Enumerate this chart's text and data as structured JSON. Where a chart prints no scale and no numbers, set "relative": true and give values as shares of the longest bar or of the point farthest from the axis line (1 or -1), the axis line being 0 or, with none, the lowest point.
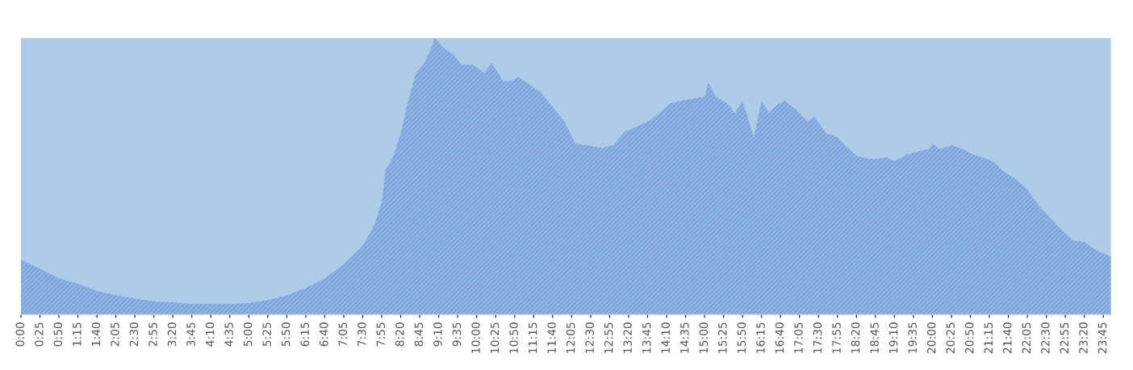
{
  "chart_data": {
    "type": "area",
    "relative": true,
    "tick_labels": "x",
    "grid": false,
    "legend": false,
    "x": [
      0,
      0.4167,
      0.8333,
      1.25,
      1.6667,
      2.0833,
      2.5,
      2.9167,
      3.3333,
      3.75,
      4.1667,
      4.5833,
      5,
      5.4167,
      5.8333,
      6.25,
      6.6667,
      7.0833,
      7.5,
      7.75,
      7.9167,
      8,
      8.1667,
      8.3333,
      8.5,
      8.6667,
      8.8333,
      9,
      9.0833,
      9.25,
      9.5,
      9.6667,
      9.9167,
      10.1667,
      10.3333,
      10.5833,
      10.75,
      10.9167,
      11.1667,
      11.4167,
      11.6667,
      11.9167,
      12.1667,
      12.4167,
      12.75,
      13,
      13.25,
      13.5833,
      13.8333,
      14,
      14.25,
      14.5,
      14.75,
      15,
      15.0833,
      15.25,
      15.5,
      15.6667,
      15.8333,
      16.0833,
      16.25,
      16.4167,
      16.5833,
      16.75,
      17,
      17.25,
      17.4167,
      17.6667,
      17.9167,
      18.0833,
      18.3333,
      18.5833,
      18.8333,
      19,
      19.1667,
      19.4167,
      19.6667,
      19.9167,
      20,
      20.1667,
      20.4167,
      20.6667,
      20.8333,
      21.0833,
      21.3333,
      21.5833,
      21.8333,
      22.0833,
      22.3333,
      22.5833,
      22.8333,
      23.0833,
      23.3333,
      23.5833,
      23.9167
    ],
    "series": [
      {
        "color": "#8fb4e3",
        "values": [
          0.198,
          0.166,
          0.131,
          0.111,
          0.085,
          0.07,
          0.058,
          0.047,
          0.044,
          0.038,
          0.038,
          0.038,
          0.041,
          0.052,
          0.07,
          0.096,
          0.131,
          0.181,
          0.248,
          0.321,
          0.408,
          0.525,
          0.569,
          0.656,
          0.773,
          0.875,
          0.904,
          0.962,
          1.0,
          0.968,
          0.939,
          0.904,
          0.904,
          0.875,
          0.91,
          0.845,
          0.845,
          0.86,
          0.831,
          0.802,
          0.752,
          0.7,
          0.618,
          0.612,
          0.603,
          0.612,
          0.662,
          0.685,
          0.706,
          0.729,
          0.764,
          0.773,
          0.781,
          0.787,
          0.84,
          0.787,
          0.764,
          0.729,
          0.773,
          0.641,
          0.773,
          0.729,
          0.758,
          0.773,
          0.743,
          0.7,
          0.714,
          0.656,
          0.641,
          0.612,
          0.574,
          0.563,
          0.563,
          0.569,
          0.554,
          0.577,
          0.589,
          0.598,
          0.618,
          0.598,
          0.612,
          0.598,
          0.583,
          0.569,
          0.554,
          0.516,
          0.49,
          0.452,
          0.394,
          0.35,
          0.306,
          0.268,
          0.262,
          0.233,
          0.21
        ]
      }
    ],
    "xlim": [
      0,
      23.9167
    ],
    "xticks": [
      {
        "value": 0,
        "label": "0:00"
      },
      {
        "value": 0.4167,
        "label": "0:25"
      },
      {
        "value": 0.8333,
        "label": "0:50"
      },
      {
        "value": 1.25,
        "label": "1:15"
      },
      {
        "value": 1.6667,
        "label": "1:40"
      },
      {
        "value": 2.0833,
        "label": "2:05"
      },
      {
        "value": 2.5,
        "label": "2:30"
      },
      {
        "value": 2.9167,
        "label": "2:55"
      },
      {
        "value": 3.3333,
        "label": "3:20"
      },
      {
        "value": 3.75,
        "label": "3:45"
      },
      {
        "value": 4.1667,
        "label": "4:10"
      },
      {
        "value": 4.5833,
        "label": "4:35"
      },
      {
        "value": 5,
        "label": "5:00"
      },
      {
        "value": 5.4167,
        "label": "5:25"
      },
      {
        "value": 5.8333,
        "label": "5:50"
      },
      {
        "value": 6.25,
        "label": "6:15"
      },
      {
        "value": 6.6667,
        "label": "6:40"
      },
      {
        "value": 7.0833,
        "label": "7:05"
      },
      {
        "value": 7.5,
        "label": "7:30"
      },
      {
        "value": 7.9167,
        "label": "7:55"
      },
      {
        "value": 8.3333,
        "label": "8:20"
      },
      {
        "value": 8.75,
        "label": "8:45"
      },
      {
        "value": 9.1667,
        "label": "9:10"
      },
      {
        "value": 9.5833,
        "label": "9:35"
      },
      {
        "value": 10,
        "label": "10:00"
      },
      {
        "value": 10.4167,
        "label": "10:25"
      },
      {
        "value": 10.8333,
        "label": "10:50"
      },
      {
        "value": 11.25,
        "label": "11:15"
      },
      {
        "value": 11.6667,
        "label": "11:40"
      },
      {
        "value": 12.0833,
        "label": "12:05"
      },
      {
        "value": 12.5,
        "label": "12:30"
      },
      {
        "value": 12.9167,
        "label": "12:55"
      },
      {
        "value": 13.3333,
        "label": "13:20"
      },
      {
        "value": 13.75,
        "label": "13:45"
      },
      {
        "value": 14.1667,
        "label": "14:10"
      },
      {
        "value": 14.5833,
        "label": "14:35"
      },
      {
        "value": 15,
        "label": "15:00"
      },
      {
        "value": 15.4167,
        "label": "15:25"
      },
      {
        "value": 15.8333,
        "label": "15:50"
      },
      {
        "value": 16.25,
        "label": "16:15"
      },
      {
        "value": 16.6667,
        "label": "16:40"
      },
      {
        "value": 17.0833,
        "label": "17:05"
      },
      {
        "value": 17.5,
        "label": "17:30"
      },
      {
        "value": 17.9167,
        "label": "17:55"
      },
      {
        "value": 18.3333,
        "label": "18:20"
      },
      {
        "value": 18.75,
        "label": "18:45"
      },
      {
        "value": 19.1667,
        "label": "19:10"
      },
      {
        "value": 19.5833,
        "label": "19:35"
      },
      {
        "value": 20,
        "label": "20:00"
      },
      {
        "value": 20.4167,
        "label": "20:25"
      },
      {
        "value": 20.8333,
        "label": "20:50"
      },
      {
        "value": 21.25,
        "label": "21:15"
      },
      {
        "value": 21.6667,
        "label": "21:40"
      },
      {
        "value": 22.0833,
        "label": "22:05"
      },
      {
        "value": 22.5,
        "label": "22:30"
      },
      {
        "value": 22.9167,
        "label": "22:55"
      },
      {
        "value": 23.3333,
        "label": "23:20"
      },
      {
        "value": 23.75,
        "label": "23:45"
      }
    ]
  }
}
